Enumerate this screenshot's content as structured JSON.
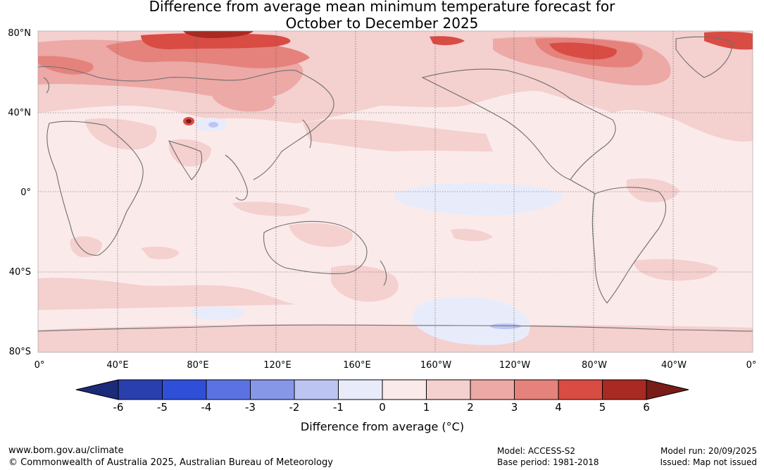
{
  "title": {
    "line1": "Difference from average mean minimum temperature forecast for",
    "line2": "October to December 2025"
  },
  "map": {
    "lat_labels": [
      "80°N",
      "40°N",
      "0°",
      "40°S",
      "80°S"
    ],
    "lon_labels": [
      "0°",
      "40°E",
      "80°E",
      "120°E",
      "160°E",
      "160°W",
      "120°W",
      "80°W",
      "40°W",
      "0°"
    ]
  },
  "colorbar": {
    "ticks": [
      "-6",
      "-5",
      "-4",
      "-3",
      "-2",
      "-1",
      "0",
      "1",
      "2",
      "3",
      "4",
      "5",
      "6"
    ],
    "colors": [
      "#2a3fae",
      "#2f4fd8",
      "#5b73e2",
      "#8797e8",
      "#bcc5f2",
      "#e8ecfa",
      "#fbeaea",
      "#f4d0cf",
      "#eca9a6",
      "#e5827c",
      "#d84c44",
      "#a82a23"
    ],
    "low_extend_color": "#1c2a7a",
    "high_extend_color": "#7a1c18",
    "label": "Difference from average (°C)"
  },
  "footer": {
    "website": "www.bom.gov.au/climate",
    "copyright": "© Commonwealth of Australia 2025, Australian Bureau of Meteorology",
    "model": "Model: ACCESS-S2",
    "base_period": "Base period: 1981-2018",
    "model_run": "Model run: 20/09/2025",
    "issued": "Issued: Map not issued"
  }
}
